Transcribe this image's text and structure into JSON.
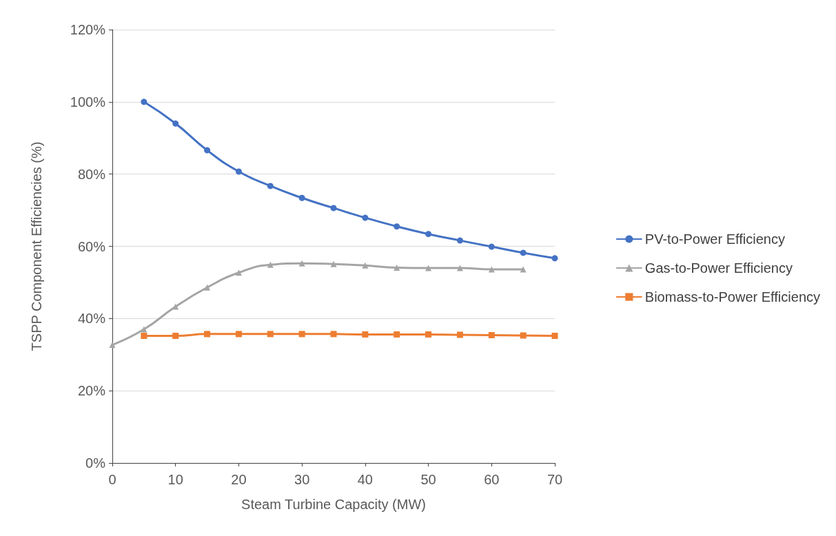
{
  "chart_data": {
    "type": "line",
    "xlabel": "Steam Turbine Capacity (MW)",
    "ylabel": "TSPP Component Efficiencies (%)",
    "xlim": [
      0,
      70
    ],
    "xticks": [
      0,
      10,
      20,
      30,
      40,
      50,
      60,
      70
    ],
    "ylim": [
      0,
      120
    ],
    "yticks": [
      {
        "value": 0,
        "label": "0%"
      },
      {
        "value": 20,
        "label": "20%"
      },
      {
        "value": 40,
        "label": "40%"
      },
      {
        "value": 60,
        "label": "60%"
      },
      {
        "value": 80,
        "label": "80%"
      },
      {
        "value": 100,
        "label": "100%"
      },
      {
        "value": 120,
        "label": "120%"
      }
    ],
    "grid": "y",
    "legend": "right",
    "line_style": "solid",
    "series": [
      {
        "name": "PV-to-Power Efficiency",
        "color": "#4472c4",
        "marker": "circle",
        "x": [
          5,
          10,
          15,
          20,
          25,
          30,
          35,
          40,
          45,
          50,
          55,
          60,
          65,
          70
        ],
        "values": [
          100,
          94.0,
          86.6,
          80.7,
          76.7,
          73.4,
          70.6,
          67.9,
          65.5,
          63.4,
          61.6,
          59.9,
          58.2,
          56.7
        ]
      },
      {
        "name": "Gas-to-Power Efficiency",
        "color": "#a5a5a5",
        "marker": "triangle",
        "x": [
          0,
          5,
          10,
          15,
          20,
          25,
          30,
          35,
          40,
          45,
          50,
          55,
          60,
          65
        ],
        "values": [
          32.7,
          37.0,
          43.3,
          48.6,
          52.7,
          54.9,
          55.3,
          55.1,
          54.7,
          54.1,
          54.0,
          54.0,
          53.6,
          53.6
        ]
      },
      {
        "name": "Biomass-to-Power Efficiency",
        "color": "#ed7d31",
        "marker": "square",
        "x": [
          5,
          10,
          15,
          20,
          25,
          30,
          35,
          40,
          45,
          50,
          55,
          60,
          65,
          70
        ],
        "values": [
          35.2,
          35.2,
          35.7,
          35.7,
          35.7,
          35.7,
          35.7,
          35.6,
          35.6,
          35.6,
          35.5,
          35.4,
          35.3,
          35.2
        ]
      }
    ]
  }
}
